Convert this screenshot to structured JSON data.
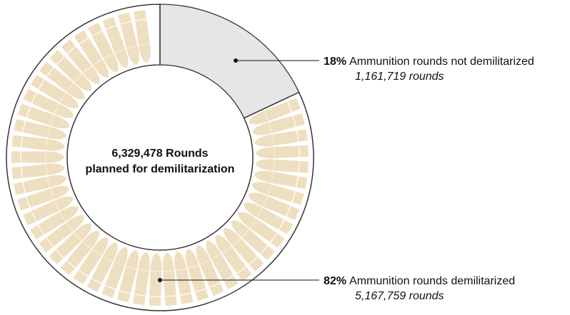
{
  "chart_data": {
    "type": "pie",
    "donut": true,
    "categories": [
      "Ammunition rounds not demilitarized",
      "Ammunition rounds demilitarized"
    ],
    "values": [
      18,
      82
    ],
    "value_labels": [
      "18%",
      "82%"
    ],
    "counts": [
      1161719,
      5167759
    ],
    "count_labels": [
      "1,161,719 rounds",
      "5,167,759 rounds"
    ],
    "colors": [
      "#e6e6e6",
      "#ffffff"
    ],
    "center_label": [
      "6,329,478 Rounds",
      "planned for demilitarization"
    ]
  }
}
